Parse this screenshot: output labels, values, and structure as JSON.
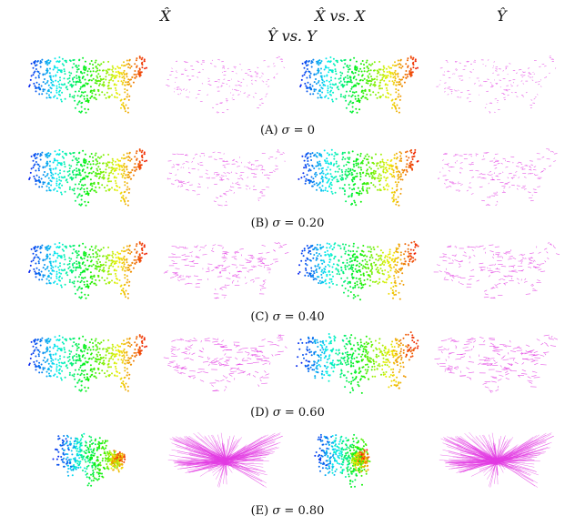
{
  "column_headers": [
    {
      "text": "X̂"
    },
    {
      "text": "X̂  vs.  X"
    },
    {
      "text": "Ŷ"
    }
  ],
  "second_header": {
    "text": "Ŷ  vs.  Y"
  },
  "rows": [
    {
      "letter": "(A)",
      "symbol": "σ",
      "eq": " = ",
      "value": "0",
      "noise": 0.0
    },
    {
      "letter": "(B)",
      "symbol": "σ",
      "eq": " = ",
      "value": "0.20",
      "noise": 0.2
    },
    {
      "letter": "(C)",
      "symbol": "σ",
      "eq": " = ",
      "value": "0.40",
      "noise": 0.4
    },
    {
      "letter": "(D)",
      "symbol": "σ",
      "eq": " = ",
      "value": "0.60",
      "noise": 0.6
    },
    {
      "letter": "(E)",
      "symbol": "σ",
      "eq": " = ",
      "value": "0.80",
      "noise": 0.8
    }
  ],
  "colors": {
    "vector_field": "#e23be2",
    "spectrum_low": "#1010c8",
    "spectrum_high": "#c80a0a"
  }
}
